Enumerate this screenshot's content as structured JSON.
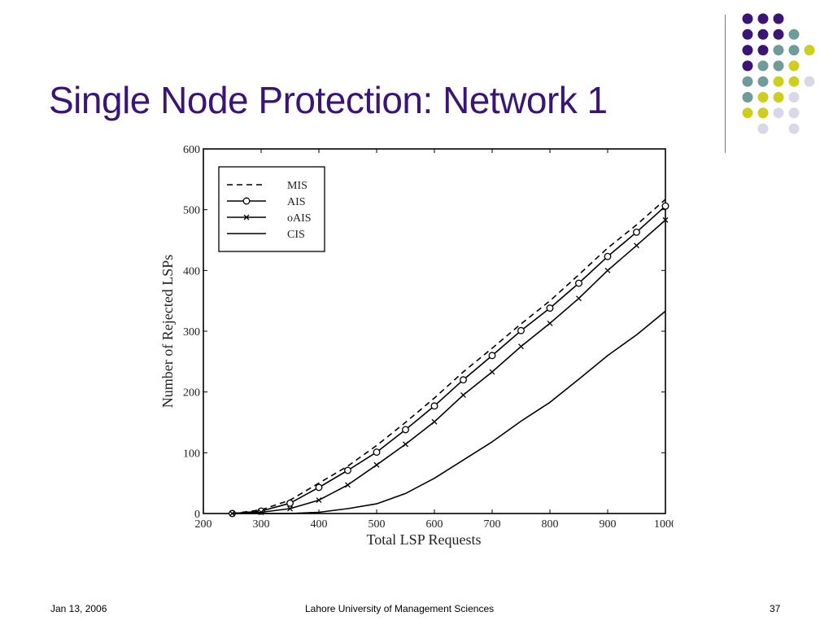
{
  "slide": {
    "title": "Single Node Protection: Network 1",
    "footer_date": "Jan 13, 2006",
    "footer_org": "Lahore University of Management Sciences",
    "footer_page": "37"
  },
  "theme": {
    "title_color": "#3b1574",
    "dot_colors": {
      "purple": "#3b1574",
      "teal": "#6f9b9b",
      "yellow": "#cfcd1e",
      "lavender": "#d8d8e8"
    }
  },
  "decoration": {
    "dot_grid": [
      [
        "purple",
        "purple",
        "purple",
        null,
        null
      ],
      [
        "purple",
        "purple",
        "purple",
        "teal",
        null
      ],
      [
        "purple",
        "purple",
        "teal",
        "teal",
        "yellow"
      ],
      [
        "purple",
        "teal",
        "teal",
        "yellow",
        null
      ],
      [
        "teal",
        "teal",
        "yellow",
        "yellow",
        "lavender"
      ],
      [
        "teal",
        "yellow",
        "yellow",
        "lavender",
        null
      ],
      [
        "yellow",
        "yellow",
        "lavender",
        "lavender",
        null
      ],
      [
        null,
        "lavender",
        null,
        "lavender",
        null
      ]
    ]
  },
  "chart_data": {
    "type": "line",
    "title": "",
    "xlabel": "Total LSP Requests",
    "ylabel": "Number of Rejected LSPs",
    "xlim": [
      200,
      1000
    ],
    "ylim": [
      0,
      600
    ],
    "xticks": [
      200,
      300,
      400,
      500,
      600,
      700,
      800,
      900,
      1000
    ],
    "yticks": [
      0,
      100,
      200,
      300,
      400,
      500,
      600
    ],
    "grid": false,
    "legend_position": "top-left",
    "series": [
      {
        "name": "MIS",
        "style": "dashed",
        "marker": "none",
        "x": [
          250,
          300,
          350,
          400,
          450,
          500,
          550,
          600,
          650,
          700,
          750,
          800,
          850,
          900,
          950,
          1000
        ],
        "y": [
          0,
          6,
          22,
          50,
          78,
          112,
          150,
          190,
          233,
          272,
          312,
          350,
          393,
          437,
          475,
          517
        ]
      },
      {
        "name": "AIS",
        "style": "solid",
        "marker": "circle",
        "x": [
          250,
          300,
          350,
          400,
          450,
          500,
          550,
          600,
          650,
          700,
          750,
          800,
          850,
          900,
          950,
          1000
        ],
        "y": [
          0,
          4,
          17,
          43,
          71,
          101,
          138,
          177,
          220,
          260,
          301,
          338,
          379,
          423,
          463,
          506
        ]
      },
      {
        "name": "oAIS",
        "style": "solid",
        "marker": "x",
        "x": [
          250,
          300,
          350,
          400,
          450,
          500,
          550,
          600,
          650,
          700,
          750,
          800,
          850,
          900,
          950,
          1000
        ],
        "y": [
          0,
          2,
          8,
          22,
          47,
          80,
          114,
          151,
          195,
          233,
          275,
          313,
          354,
          400,
          441,
          483
        ]
      },
      {
        "name": "CIS",
        "style": "solid",
        "marker": "none",
        "x": [
          250,
          300,
          350,
          400,
          450,
          500,
          550,
          600,
          650,
          700,
          750,
          800,
          850,
          900,
          950,
          1000
        ],
        "y": [
          0,
          0,
          0,
          2,
          8,
          16,
          33,
          58,
          88,
          118,
          152,
          183,
          221,
          260,
          294,
          333
        ]
      }
    ]
  }
}
